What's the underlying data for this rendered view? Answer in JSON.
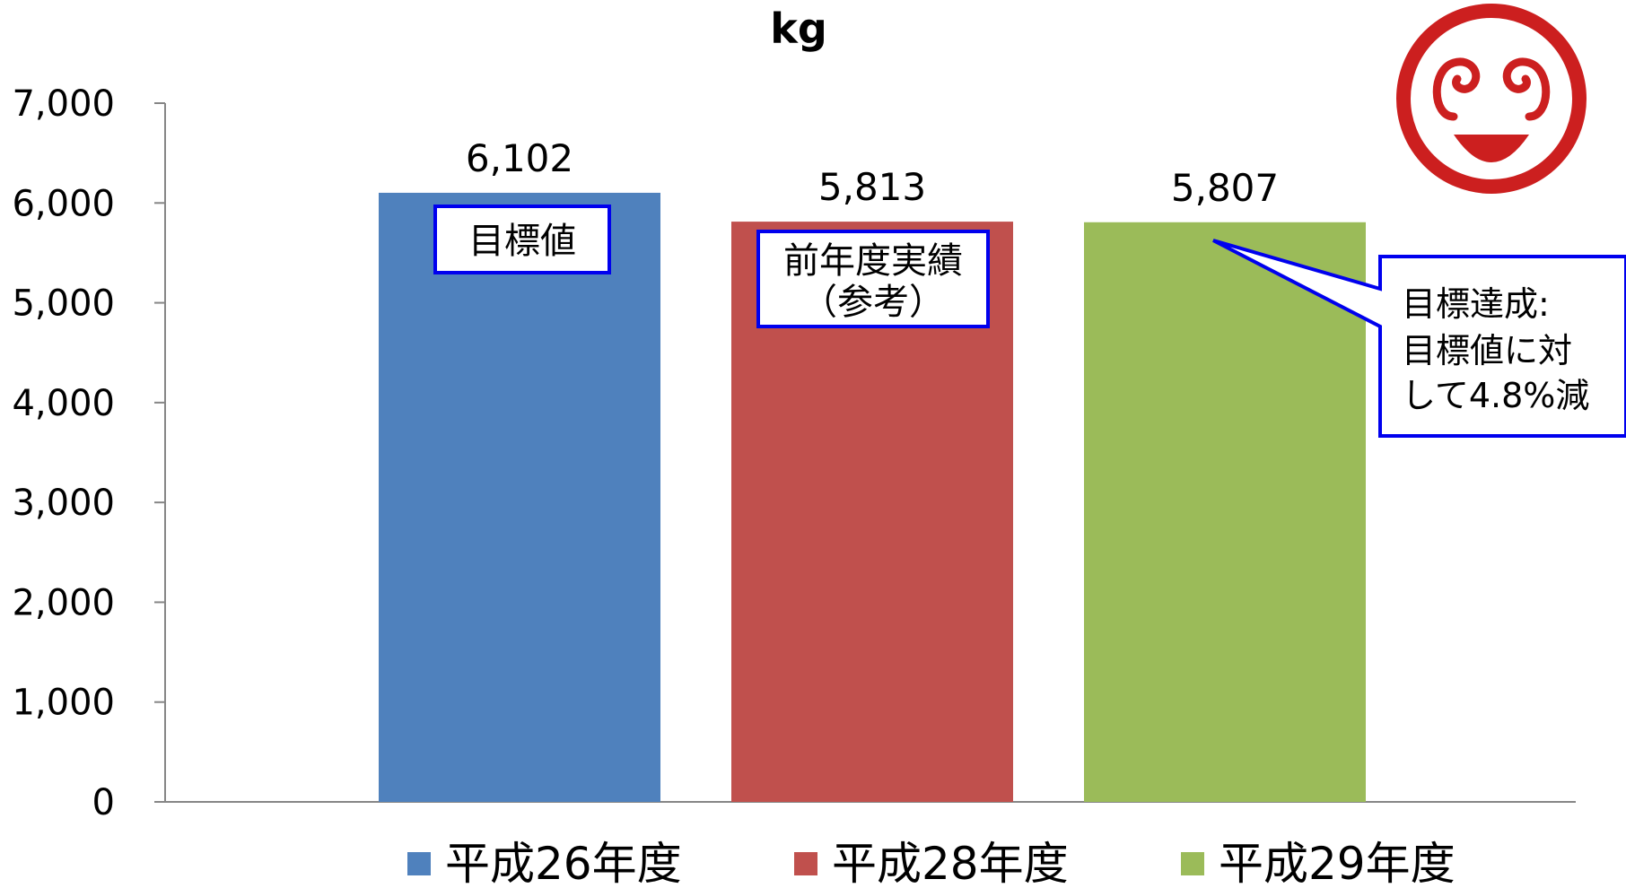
{
  "chart_data": {
    "type": "bar",
    "title": "kg",
    "categories": [
      "平成26年度",
      "平成28年度",
      "平成29年度"
    ],
    "values": [
      6102,
      5813,
      5807
    ],
    "data_labels": [
      "6,102",
      "5,813",
      "5,807"
    ],
    "colors": [
      "#4f81bd",
      "#c0504d",
      "#9bbb59"
    ],
    "ylim": [
      0,
      7000
    ],
    "yticks": [
      0,
      1000,
      2000,
      3000,
      4000,
      5000,
      6000,
      7000
    ],
    "ytick_labels": [
      "0",
      "1,000",
      "2,000",
      "3,000",
      "4,000",
      "5,000",
      "6,000",
      "7,000"
    ],
    "grid": false,
    "legend_position": "bottom",
    "legend": [
      "平成26年度",
      "平成28年度",
      "平成29年度"
    ],
    "annotations": {
      "bar1_note": "目標値",
      "bar2_note_line1": "前年度実績",
      "bar2_note_line2": "（参考）",
      "callout_line1": "目標達成:",
      "callout_line2": "目標値に対",
      "callout_line3": "して4.8%減"
    },
    "annotation_border_color": "#0000ee"
  },
  "logo": {
    "name": "smiling-face-logo",
    "color": "#cc1f1f"
  }
}
